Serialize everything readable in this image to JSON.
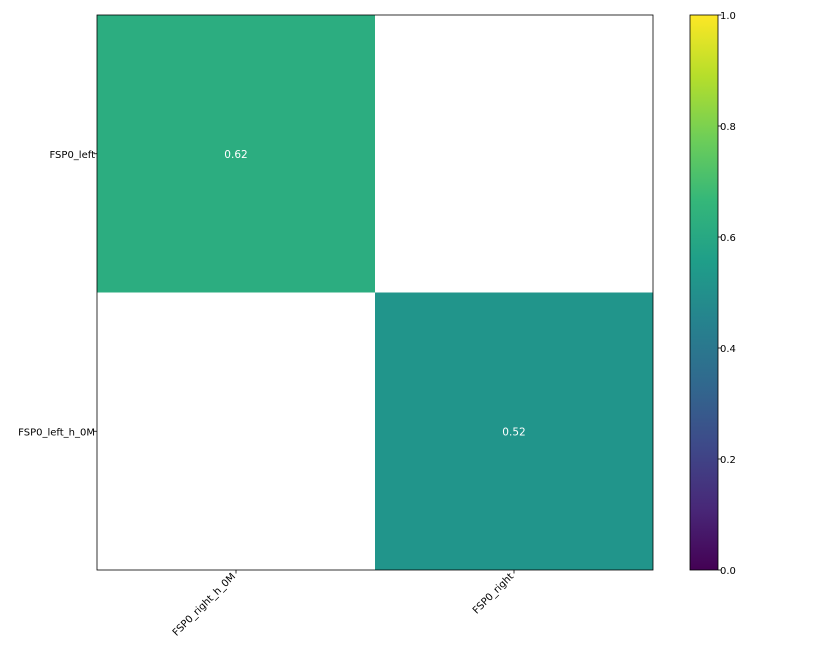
{
  "chart_data": {
    "type": "heatmap",
    "x_categories": [
      "FSP0_right_h_0M",
      "FSP0_right"
    ],
    "y_categories": [
      "FSP0_left",
      "FSP0_left_h_0M"
    ],
    "cells": [
      {
        "row": 0,
        "col": 0,
        "value": 0.62,
        "label": "0.62"
      },
      {
        "row": 1,
        "col": 1,
        "value": 0.52,
        "label": "0.52"
      }
    ],
    "empty_cell_color": "#ffffff",
    "colorbar": {
      "min": 0.0,
      "max": 1.0,
      "ticks": [
        {
          "value": 0.0,
          "label": "0.0"
        },
        {
          "value": 0.2,
          "label": "0.2"
        },
        {
          "value": 0.4,
          "label": "0.4"
        },
        {
          "value": 0.6,
          "label": "0.6"
        },
        {
          "value": 0.8,
          "label": "0.8"
        },
        {
          "value": 1.0,
          "label": "1.0"
        }
      ],
      "colormap": "viridis",
      "stops": [
        "#440154",
        "#482878",
        "#3e4989",
        "#31688e",
        "#26828e",
        "#1f9e89",
        "#35b779",
        "#6ece58",
        "#b5de2b",
        "#fde725"
      ]
    },
    "annotation_color": "#ffffff",
    "grid": false,
    "title": "",
    "xlabel": "",
    "ylabel": ""
  }
}
